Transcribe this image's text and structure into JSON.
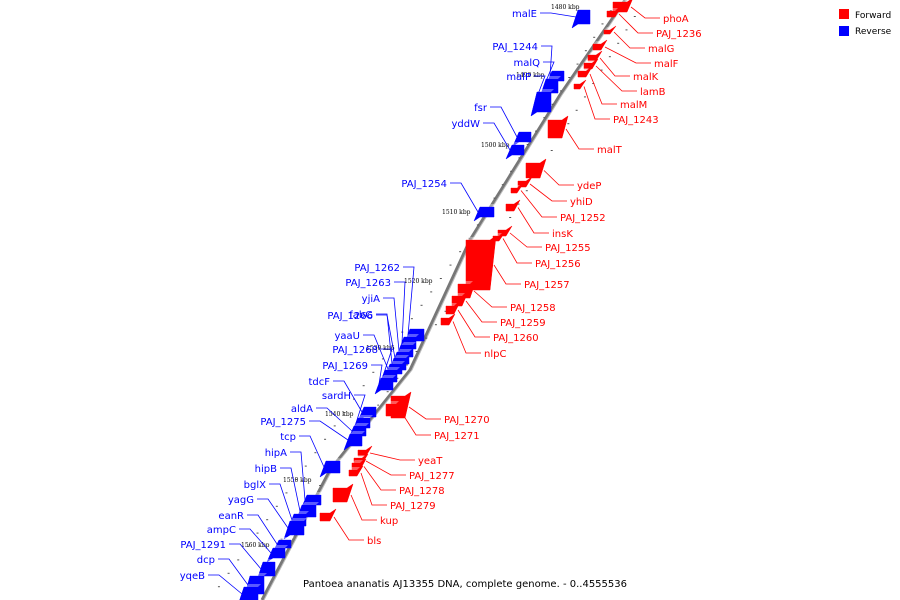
{
  "caption": "Pantoea ananatis AJ13355 DNA, complete genome. - 0..4555536",
  "legend": [
    {
      "label": "Forward",
      "color": "#ff0000"
    },
    {
      "label": "Reverse",
      "color": "#0000ff"
    }
  ],
  "colors": {
    "forward": "#ff0000",
    "reverse": "#0000ff",
    "backbone": "#888888"
  },
  "ticks": [
    "1480 kbp",
    "1490 kbp",
    "1500 kbp",
    "1510 kbp",
    "1520 kbp",
    "1530 kbp",
    "1540 kbp",
    "1550 kbp",
    "1560 kbp"
  ],
  "forward_genes": [
    "phoA",
    "PAJ_1236",
    "malG",
    "malF",
    "malK",
    "lamB",
    "malM",
    "PAJ_1243",
    "malT",
    "ydeP",
    "yhiD",
    "PAJ_1252",
    "insK",
    "PAJ_1255",
    "PAJ_1256",
    "PAJ_1257",
    "PAJ_1258",
    "PAJ_1259",
    "PAJ_1260",
    "nlpC",
    "PAJ_1270",
    "PAJ_1271",
    "yeaT",
    "PAJ_1277",
    "PAJ_1278",
    "PAJ_1279",
    "kup",
    "bls"
  ],
  "reverse_genes": [
    "malE",
    "PAJ_1244",
    "malQ",
    "malP",
    "fsr",
    "yddW",
    "PAJ_1254",
    "PAJ_1262",
    "PAJ_1263",
    "yjiA",
    "PAJ_1266",
    "fabG",
    "yaaU",
    "PAJ_1268",
    "PAJ_1269",
    "tdcF",
    "sardH",
    "aldA",
    "PAJ_1275",
    "tcp",
    "hipA",
    "hipB",
    "bglX",
    "yagG",
    "eanR",
    "ampC",
    "PAJ_1291",
    "dcp",
    "yqeB"
  ]
}
